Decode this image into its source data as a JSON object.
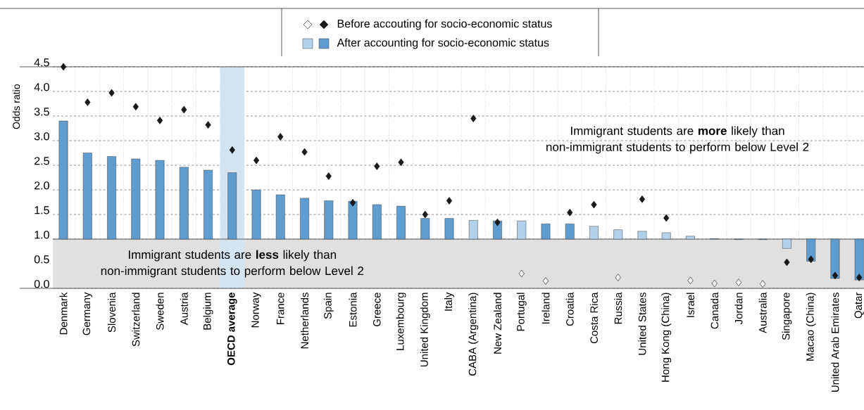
{
  "chart_data": {
    "type": "bar",
    "ylabel": "Odds ratio",
    "categories": [
      "Denmark",
      "Germany",
      "Slovenia",
      "Switzerland",
      "Sweden",
      "Austria",
      "Belgium",
      "**OECD average**",
      "Norway",
      "France",
      "Netherlands",
      "Spain",
      "Estonia",
      "Greece",
      "Luxembourg",
      "United Kingdom",
      "Italy",
      "CABA (Argentina)",
      "New Zealand",
      "Portugal",
      "Ireland",
      "Croatia",
      "Costa Rica",
      "Russia",
      "United States",
      "Hong Kong (China)",
      "Israel",
      "Canada",
      "Jordan",
      "Australia",
      "Singapore",
      "Macao (China)",
      "United Arab Emirates",
      "Qatar"
    ],
    "series": [
      {
        "name": "Before accouting for socio-economic status",
        "type": "scatter",
        "marker": "diamond",
        "x": [
          "Denmark",
          "Germany",
          "Slovenia",
          "Switzerland",
          "Sweden",
          "Austria",
          "Belgium",
          "**OECD average**",
          "Norway",
          "France",
          "Netherlands",
          "Spain",
          "Estonia",
          "Greece",
          "Luxembourg",
          "United Kingdom",
          "Italy",
          "CABA (Argentina)",
          "New Zealand",
          "Portugal",
          "Ireland",
          "Croatia",
          "Costa Rica",
          "Russia",
          "United States",
          "Hong Kong (China)",
          "Israel",
          "Canada",
          "Jordan",
          "Australia",
          "Singapore",
          "Macao (China)",
          "United Arab Emirates",
          "Qatar"
        ],
        "values": [
          4.5,
          3.78,
          3.97,
          3.69,
          3.41,
          3.63,
          3.32,
          2.81,
          2.6,
          3.08,
          2.77,
          2.28,
          1.74,
          2.48,
          2.56,
          1.5,
          1.78,
          3.45,
          1.34,
          0.3,
          0.15,
          1.54,
          1.7,
          0.22,
          1.81,
          1.43,
          0.16,
          0.1,
          0.12,
          0.09,
          0.53,
          0.59,
          0.26,
          0.22
        ],
        "colors": [
          "#1a1a1a",
          "#1a1a1a",
          "#1a1a1a",
          "#1a1a1a",
          "#1a1a1a",
          "#1a1a1a",
          "#1a1a1a",
          "#1a1a1a",
          "#1a1a1a",
          "#1a1a1a",
          "#1a1a1a",
          "#1a1a1a",
          "#1a1a1a",
          "#1a1a1a",
          "#1a1a1a",
          "#1a1a1a",
          "#1a1a1a",
          "#1a1a1a",
          "#1a1a1a",
          "#ffffff",
          "#ffffff",
          "#1a1a1a",
          "#1a1a1a",
          "#ffffff",
          "#1a1a1a",
          "#1a1a1a",
          "#ffffff",
          "#ffffff",
          "#ffffff",
          "#ffffff",
          "#1a1a1a",
          "#1a1a1a",
          "#1a1a1a",
          "#1a1a1a"
        ]
      },
      {
        "name": "After accounting for socio-economic status",
        "type": "bar",
        "base": [
          1,
          1,
          1,
          1,
          1,
          1,
          1,
          1,
          1,
          1,
          1,
          1,
          1,
          1,
          1,
          1,
          1,
          1,
          1,
          1,
          1,
          1,
          1,
          1,
          1,
          1,
          1,
          1,
          1,
          1,
          1,
          1,
          1,
          1
        ],
        "values": [
          2.4,
          1.75,
          1.68,
          1.63,
          1.6,
          1.46,
          1.4,
          1.35,
          1.0,
          0.9,
          0.83,
          0.78,
          0.77,
          0.7,
          0.67,
          0.42,
          0.42,
          0.38,
          0.37,
          0.37,
          0.31,
          0.31,
          0.26,
          0.19,
          0.16,
          0.13,
          0.06,
          0.01,
          -0.01,
          -0.01,
          -0.19,
          -0.45,
          -0.8,
          -0.83
        ],
        "colors": [
          "#5f9ccf",
          "#5f9ccf",
          "#5f9ccf",
          "#5f9ccf",
          "#5f9ccf",
          "#5f9ccf",
          "#5f9ccf",
          "#5f9ccf",
          "#5f9ccf",
          "#5f9ccf",
          "#5f9ccf",
          "#5f9ccf",
          "#5f9ccf",
          "#5f9ccf",
          "#5f9ccf",
          "#5f9ccf",
          "#5f9ccf",
          "#b3d1ea",
          "#5f9ccf",
          "#b3d1ea",
          "#5f9ccf",
          "#5f9ccf",
          "#b3d1ea",
          "#b3d1ea",
          "#b3d1ea",
          "#b3d1ea",
          "#b3d1ea",
          "#5f9ccf",
          "#5f9ccf",
          "#5f9ccf",
          "#b3d1ea",
          "#5f9ccf",
          "#5f9ccf",
          "#5f9ccf"
        ]
      }
    ],
    "ylim": [
      0,
      4.5
    ],
    "yticks": [
      {
        "value": 0,
        "label": "0.0"
      },
      {
        "value": 0.5,
        "label": "0.5"
      },
      {
        "value": 1,
        "label": "1.0"
      },
      {
        "value": 1.5,
        "label": "1.5"
      },
      {
        "value": 2,
        "label": "2.0"
      },
      {
        "value": 2.5,
        "label": "2.5"
      },
      {
        "value": 3,
        "label": "3.0"
      },
      {
        "value": 3.5,
        "label": "3.5"
      },
      {
        "value": 4,
        "label": "4.0"
      },
      {
        "value": 4.5,
        "label": "4.5"
      }
    ],
    "ref_lines": [
      {
        "axis": "y",
        "value": 1
      }
    ],
    "bands": [
      {
        "axis": "y",
        "from": 0,
        "to": 1,
        "color": "#e0e0e0",
        "label": "Immigrant students are **less** likely than non-immigrant students to perform below Level 2"
      },
      {
        "axis": "x",
        "from": "**OECD average**",
        "to": "**OECD average**",
        "color": "#d5e4f1"
      }
    ],
    "annotations": [
      "Immigrant students are **more** likely than non-immigrant students to perform below Level 2"
    ],
    "grid": true,
    "legend": "top"
  }
}
